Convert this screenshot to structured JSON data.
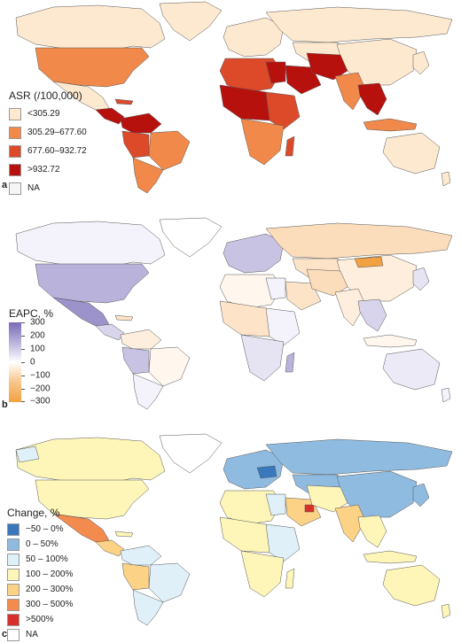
{
  "panel_a": {
    "letter": "a",
    "legend_title": "ASR (/100,000)",
    "legend": [
      {
        "label": "<305.29",
        "color": "#fde9cf"
      },
      {
        "label": "305.29–677.60",
        "color": "#f0894a"
      },
      {
        "label": "677.60–932.72",
        "color": "#dc4a2a"
      },
      {
        "label": ">932.72",
        "color": "#b7110e"
      },
      {
        "label": "NA",
        "color": "#f5f5f5"
      }
    ]
  },
  "panel_b": {
    "letter": "b",
    "legend_title": "EAPC, %",
    "scale": [
      "300",
      "200",
      "100",
      "0",
      "−100",
      "−200",
      "−300"
    ]
  },
  "panel_c": {
    "letter": "c",
    "legend_title": "Change, %",
    "legend": [
      {
        "label": "−50 – 0%",
        "color": "#3a78bd"
      },
      {
        "label": "0 – 50%",
        "color": "#8fbbe0"
      },
      {
        "label": "50 – 100%",
        "color": "#dff0f9"
      },
      {
        "label": "100 – 200%",
        "color": "#fdf6b8"
      },
      {
        "label": "200 – 300%",
        "color": "#fcd286"
      },
      {
        "label": "300 – 500%",
        "color": "#f38a4e"
      },
      {
        "label": ">500%",
        "color": "#d7302a"
      },
      {
        "label": "NA",
        "color": "#ffffff"
      }
    ]
  }
}
